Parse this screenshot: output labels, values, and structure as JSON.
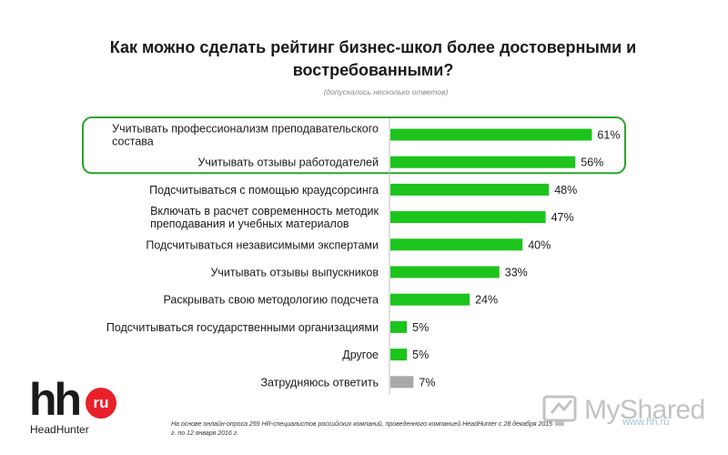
{
  "header": {
    "title": "Как можно сделать рейтинг бизнес-школ более достоверными и востребованными?",
    "subtitle": "(допускалось несколько ответов)"
  },
  "footer": {
    "note": "На основе онлайн-опроса 259 HR-специалистов российских компаний, проведенного компанией HeadHunter с 28 декабря 2015 г. по 12 января 2016 г.",
    "logo_text": "hh",
    "logo_badge": "ru",
    "logo_name": "HeadHunter",
    "watermark": "MyShared",
    "watermark_url": "www.hh.ru"
  },
  "chart_data": {
    "type": "bar",
    "orientation": "horizontal",
    "categories": [
      "Учитывать профессионализм преподавательского состава",
      "Учитывать отзывы работодателей",
      "Подсчитываться с помощью краудсорсинга",
      "Включать в расчет современность методик преподавания и учебных материалов",
      "Подсчитываться независимыми экспертами",
      "Учитывать отзывы выпускников",
      "Раскрывать свою методологию подсчета",
      "Подсчитываться государственными организациями",
      "Другое",
      "Затрудняюсь ответить"
    ],
    "values": [
      61,
      56,
      48,
      47,
      40,
      33,
      24,
      5,
      5,
      7
    ],
    "value_labels": [
      "61%",
      "56%",
      "48%",
      "47%",
      "40%",
      "33%",
      "24%",
      "5%",
      "5%",
      "7%"
    ],
    "unit": "%",
    "bar_colors": [
      "#1cc41c",
      "#1cc41c",
      "#1cc41c",
      "#1cc41c",
      "#1cc41c",
      "#1cc41c",
      "#1cc41c",
      "#1cc41c",
      "#1cc41c",
      "#a9a9a9"
    ],
    "highlighted_categories": [
      0,
      1
    ],
    "highlight_color": "#2aa52a",
    "xlim": [
      0,
      100
    ],
    "grid": false,
    "legend": "none"
  }
}
